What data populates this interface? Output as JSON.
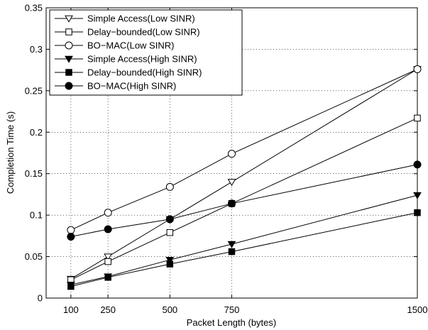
{
  "chart_data": {
    "type": "line",
    "title": "",
    "xlabel": "Packet Length (bytes)",
    "ylabel": "Completion Time (s)",
    "xlim": [
      0,
      1500
    ],
    "ylim": [
      0,
      0.35
    ],
    "x_tick_values": [
      100,
      250,
      500,
      750,
      1500
    ],
    "x_tick_labels": [
      "100",
      "250",
      "500",
      "750",
      "1500"
    ],
    "y_tick_values": [
      0,
      0.05,
      0.1,
      0.15,
      0.2,
      0.25,
      0.3,
      0.35
    ],
    "y_tick_labels": [
      "0",
      "0.05",
      "0.1",
      "0.15",
      "0.2",
      "0.25",
      "0.3",
      "0.35"
    ],
    "grid": true,
    "legend_position": "top-left",
    "x": [
      100,
      250,
      500,
      750,
      1500
    ],
    "series": [
      {
        "name": "Simple Access(Low SINR)",
        "marker": "triangle-down-open",
        "values": [
          0.023,
          0.05,
          0.095,
          0.14,
          0.276
        ]
      },
      {
        "name": "Delay−bounded(Low SINR)",
        "marker": "square-open",
        "values": [
          0.022,
          0.044,
          0.079,
          0.114,
          0.217
        ]
      },
      {
        "name": "BO−MAC(Low SINR)",
        "marker": "circle-open",
        "values": [
          0.082,
          0.103,
          0.134,
          0.174,
          0.276
        ]
      },
      {
        "name": "Simple Access(High SINR)",
        "marker": "triangle-down-filled",
        "values": [
          0.016,
          0.026,
          0.046,
          0.065,
          0.124
        ]
      },
      {
        "name": "Delay−bounded(High SINR)",
        "marker": "square-filled",
        "values": [
          0.014,
          0.025,
          0.041,
          0.056,
          0.103
        ]
      },
      {
        "name": "BO−MAC(High SINR)",
        "marker": "circle-filled",
        "values": [
          0.074,
          0.083,
          0.095,
          0.114,
          0.161
        ]
      }
    ]
  }
}
